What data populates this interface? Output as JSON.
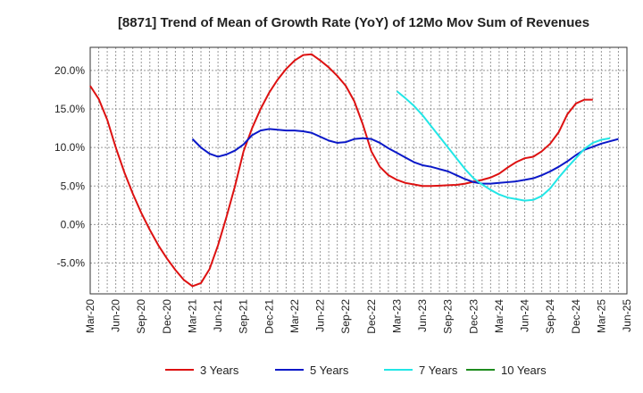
{
  "chart_data": {
    "type": "line",
    "title": "[8871]  Trend of Mean of Growth Rate (YoY) of 12Mo Mov Sum of Revenues",
    "xlabel": "",
    "ylabel": "",
    "ylim": [
      -9,
      23
    ],
    "grid": true,
    "legend_position": "bottom",
    "x_ticks": [
      "Mar-20",
      "Jun-20",
      "Sep-20",
      "Dec-20",
      "Mar-21",
      "Jun-21",
      "Sep-21",
      "Dec-21",
      "Mar-22",
      "Jun-22",
      "Sep-22",
      "Dec-22",
      "Mar-23",
      "Jun-23",
      "Sep-23",
      "Dec-23",
      "Mar-24",
      "Jun-24",
      "Sep-24",
      "Dec-24",
      "Mar-25",
      "Jun-25"
    ],
    "y_ticks": [
      -5,
      0,
      5,
      10,
      15,
      20
    ],
    "y_tick_labels": [
      "-5.0%",
      "0.0%",
      "5.0%",
      "10.0%",
      "15.0%",
      "20.0%"
    ],
    "series": [
      {
        "name": "3 Years",
        "color": "#dd1111",
        "start_index": 0,
        "values": [
          18.0,
          16.3,
          13.6,
          10.0,
          6.8,
          4.0,
          1.5,
          -0.7,
          -2.7,
          -4.4,
          -5.9,
          -7.2,
          -8.0,
          -7.6,
          -5.8,
          -2.7,
          1.0,
          5.0,
          9.5,
          12.5,
          15.0,
          17.1,
          18.8,
          20.2,
          21.3,
          22.0,
          22.1,
          21.3,
          20.4,
          19.3,
          18.0,
          16.0,
          13.0,
          9.5,
          7.5,
          6.4,
          5.8,
          5.4,
          5.2,
          5.0,
          5.0,
          5.05,
          5.1,
          5.15,
          5.3,
          5.55,
          5.8,
          6.1,
          6.6,
          7.4,
          8.1,
          8.6,
          8.8,
          9.5,
          10.5,
          12.0,
          14.3,
          15.7,
          16.2,
          16.2
        ]
      },
      {
        "name": "5 Years",
        "color": "#0a18c8",
        "start_index": 12,
        "values": [
          11.1,
          10.0,
          9.2,
          8.8,
          9.1,
          9.6,
          10.4,
          11.6,
          12.2,
          12.4,
          12.3,
          12.2,
          12.2,
          12.1,
          11.9,
          11.4,
          10.9,
          10.6,
          10.7,
          11.1,
          11.2,
          11.1,
          10.6,
          9.9,
          9.3,
          8.7,
          8.1,
          7.7,
          7.5,
          7.2,
          6.9,
          6.4,
          5.9,
          5.5,
          5.3,
          5.3,
          5.4,
          5.5,
          5.6,
          5.8,
          6.0,
          6.4,
          6.9,
          7.5,
          8.2,
          9.0,
          9.7,
          10.1,
          10.5,
          10.8,
          11.1
        ]
      },
      {
        "name": "7 Years",
        "color": "#22e6e6",
        "start_index": 36,
        "values": [
          17.3,
          16.4,
          15.4,
          14.2,
          12.8,
          11.4,
          10.0,
          8.6,
          7.2,
          6.0,
          5.2,
          4.5,
          3.9,
          3.5,
          3.3,
          3.1,
          3.2,
          3.7,
          4.7,
          6.1,
          7.4,
          8.6,
          9.8,
          10.6,
          11.0,
          11.2
        ]
      },
      {
        "name": "10 Years",
        "color": "#1e8c1e",
        "start_index": 0,
        "values": []
      }
    ]
  }
}
